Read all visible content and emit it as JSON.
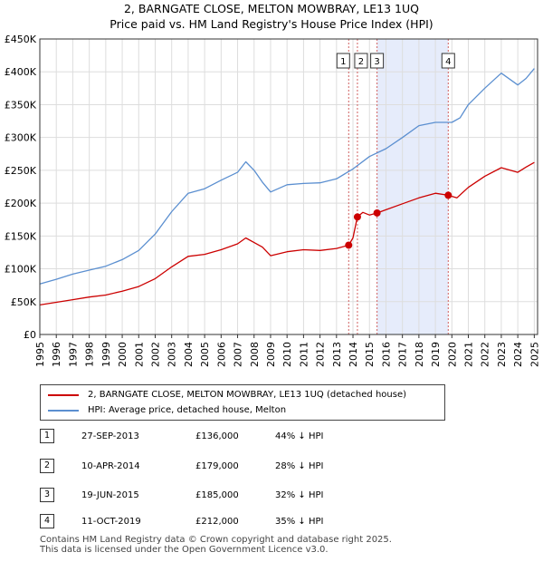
{
  "header": {
    "title_line1": "2, BARNGATE CLOSE, MELTON MOWBRAY, LE13 1UQ",
    "title_line2": "Price paid vs. HM Land Registry's House Price Index (HPI)"
  },
  "colors": {
    "price_line": "#cc0000",
    "hpi_line": "#5b8fd0",
    "shade": "#e6ecfb",
    "vline": "#d06060"
  },
  "chart_data": {
    "type": "line",
    "title": "Price paid vs. HM Land Registry's House Price Index (HPI)",
    "xlabel": "",
    "ylabel": "",
    "xlim": [
      1995,
      2025.2
    ],
    "ylim": [
      0,
      450000
    ],
    "y_ticks": [
      0,
      50000,
      100000,
      150000,
      200000,
      250000,
      300000,
      350000,
      400000,
      450000
    ],
    "y_tick_labels": [
      "£0",
      "£50K",
      "£100K",
      "£150K",
      "£200K",
      "£250K",
      "£300K",
      "£350K",
      "£400K",
      "£450K"
    ],
    "x_ticks": [
      1995,
      1996,
      1997,
      1998,
      1999,
      2000,
      2001,
      2002,
      2003,
      2004,
      2005,
      2006,
      2007,
      2008,
      2009,
      2010,
      2011,
      2012,
      2013,
      2014,
      2015,
      2016,
      2017,
      2018,
      2019,
      2020,
      2021,
      2022,
      2023,
      2024,
      2025
    ],
    "x_tick_labels": [
      "1995",
      "1996",
      "1997",
      "1998",
      "1999",
      "2000",
      "2001",
      "2002",
      "2003",
      "2004",
      "2005",
      "2006",
      "2007",
      "2008",
      "2009",
      "2010",
      "2011",
      "2012",
      "2013",
      "2014",
      "2015",
      "2016",
      "2017",
      "2018",
      "2019",
      "2020",
      "2021",
      "2022",
      "2023",
      "2024",
      "2025"
    ],
    "grid": true,
    "shaded_ranges": [
      [
        2015.46,
        2019.78
      ]
    ],
    "series": [
      {
        "name": "2, BARNGATE CLOSE, MELTON MOWBRAY, LE13 1UQ (detached house)",
        "x": [
          1995,
          1996,
          1997,
          1998,
          1999,
          2000,
          2001,
          2002,
          2003,
          2004,
          2005,
          2006,
          2007,
          2007.5,
          2008,
          2008.5,
          2009,
          2010,
          2011,
          2012,
          2013,
          2013.74,
          2014,
          2014.27,
          2014.6,
          2015,
          2015.46,
          2016,
          2017,
          2018,
          2019,
          2019.78,
          2020.3,
          2021,
          2022,
          2023,
          2024,
          2024.5,
          2025
        ],
        "values": [
          45000,
          49000,
          53000,
          57000,
          60000,
          66000,
          73000,
          85000,
          103000,
          119000,
          122000,
          129000,
          138000,
          147000,
          140000,
          133000,
          120000,
          126000,
          129000,
          128000,
          131000,
          136000,
          147000,
          179000,
          186000,
          182000,
          185000,
          190000,
          199000,
          208000,
          215000,
          212000,
          208000,
          224000,
          241000,
          254000,
          247000,
          255000,
          262000
        ]
      },
      {
        "name": "HPI: Average price, detached house, Melton",
        "x": [
          1995,
          1996,
          1997,
          1998,
          1999,
          2000,
          2001,
          2002,
          2003,
          2004,
          2005,
          2006,
          2007,
          2007.5,
          2008,
          2008.5,
          2009,
          2010,
          2011,
          2012,
          2013,
          2014,
          2015,
          2016,
          2017,
          2018,
          2019,
          2020,
          2020.5,
          2021,
          2022,
          2023,
          2024,
          2024.5,
          2025
        ],
        "values": [
          77000,
          84000,
          92000,
          98000,
          104000,
          114000,
          128000,
          153000,
          187000,
          215000,
          222000,
          235000,
          247000,
          263000,
          250000,
          232000,
          217000,
          228000,
          230000,
          231000,
          237000,
          252000,
          271000,
          283000,
          300000,
          318000,
          323000,
          323000,
          330000,
          350000,
          375000,
          398000,
          380000,
          390000,
          405000
        ]
      }
    ],
    "annotations": [
      {
        "label": "1",
        "x": 2013.74
      },
      {
        "label": "2",
        "x": 2014.27
      },
      {
        "label": "3",
        "x": 2015.46
      },
      {
        "label": "4",
        "x": 2019.78
      }
    ],
    "sale_points": [
      {
        "x": 2013.74,
        "value": 136000
      },
      {
        "x": 2014.27,
        "value": 179000
      },
      {
        "x": 2015.46,
        "value": 185000
      },
      {
        "x": 2019.78,
        "value": 212000
      }
    ]
  },
  "legend": {
    "price_label": "2, BARNGATE CLOSE, MELTON MOWBRAY, LE13 1UQ (detached house)",
    "hpi_label": "HPI: Average price, detached house, Melton"
  },
  "transactions": [
    {
      "num": "1",
      "date": "27-SEP-2013",
      "price": "£136,000",
      "hpi": "44% ↓ HPI"
    },
    {
      "num": "2",
      "date": "10-APR-2014",
      "price": "£179,000",
      "hpi": "28% ↓ HPI"
    },
    {
      "num": "3",
      "date": "19-JUN-2015",
      "price": "£185,000",
      "hpi": "32% ↓ HPI"
    },
    {
      "num": "4",
      "date": "11-OCT-2019",
      "price": "£212,000",
      "hpi": "35% ↓ HPI"
    }
  ],
  "footer": {
    "line1": "Contains HM Land Registry data © Crown copyright and database right 2025.",
    "line2": "This data is licensed under the Open Government Licence v3.0."
  }
}
